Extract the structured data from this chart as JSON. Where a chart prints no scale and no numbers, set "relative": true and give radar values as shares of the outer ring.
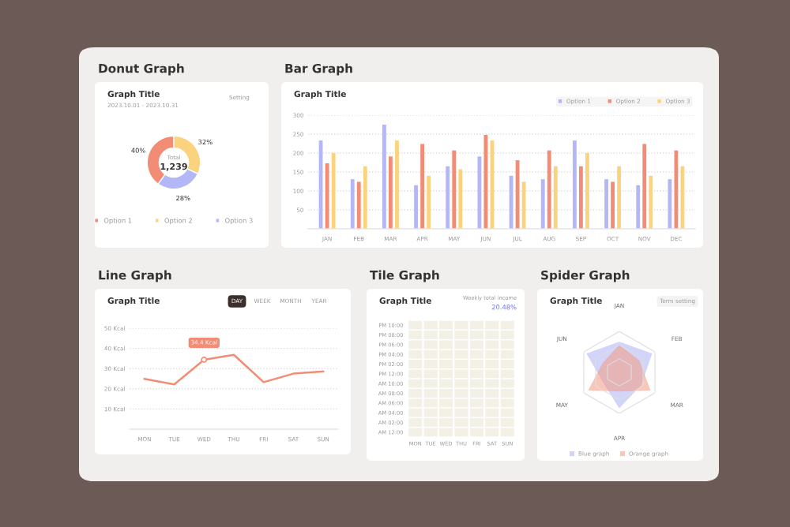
{
  "chart_data": [
    {
      "type": "donut",
      "title": "Donut Graph",
      "subtitle": "Graph Title",
      "categories": [
        "Option 1",
        "Option 2",
        "Option 3"
      ],
      "values": [
        40,
        32,
        28
      ],
      "value_labels": [
        "40%",
        "32%",
        "28%"
      ],
      "colors": [
        "#f28c74",
        "#fbd27e",
        "#b4b7f6"
      ],
      "legend": "bottom",
      "annotations": [
        "2023.10.01 - 2023.10.31",
        "Setting",
        "Total",
        "1,239"
      ]
    },
    {
      "type": "bar",
      "title": "Bar Graph",
      "subtitle": "Graph Title",
      "categories": [
        "JAN",
        "FEB",
        "MAR",
        "APR",
        "MAY",
        "JUN",
        "JUL",
        "AUG",
        "SEP",
        "OCT",
        "NOV",
        "DEC"
      ],
      "series": [
        {
          "name": "Option 1",
          "color": "#b4b7f6",
          "values": [
            233,
            131,
            275,
            115,
            165,
            191,
            140,
            131,
            233,
            131,
            115,
            131
          ]
        },
        {
          "name": "Option 2",
          "color": "#f28c74",
          "values": [
            173,
            124,
            191,
            224,
            207,
            248,
            181,
            207,
            165,
            124,
            224,
            207
          ]
        },
        {
          "name": "Option 3",
          "color": "#fbd27e",
          "values": [
            200,
            165,
            233,
            140,
            157,
            233,
            124,
            165,
            200,
            165,
            140,
            165
          ]
        }
      ],
      "ylim": [
        0,
        300
      ],
      "yticks": [
        50,
        100,
        150,
        200,
        250,
        300
      ],
      "grid": "y",
      "legend": "top right"
    },
    {
      "type": "line",
      "title": "Line Graph",
      "subtitle": "Graph Title",
      "categories": [
        "MON",
        "TUE",
        "WED",
        "THU",
        "FRI",
        "SAT",
        "SUN"
      ],
      "series": [
        {
          "color": "#f28c74",
          "values": [
            24.9,
            22.2,
            34.4,
            36.8,
            23.3,
            27.5,
            28.6
          ]
        }
      ],
      "ylim": [
        0,
        50
      ],
      "yticks": [
        {
          "value": 10,
          "label": "10 Kcal"
        },
        {
          "value": 20,
          "label": "20 Kcal"
        },
        {
          "value": 30,
          "label": "30 Kcal"
        },
        {
          "value": 40,
          "label": "40 Kcal"
        },
        {
          "value": 50,
          "label": "50 Kcal"
        }
      ],
      "grid": "y",
      "annotations": [
        "DAY",
        "WEEK",
        "MONTH",
        "YEAR",
        {
          "text": "34.4 Kcal",
          "x": "WED",
          "y": 34.4
        }
      ]
    },
    {
      "type": "other",
      "title": "Tile Graph",
      "subtitle": "Graph Title",
      "categories": [
        "MON",
        "TUE",
        "WED",
        "THU",
        "FRI",
        "SAT",
        "SUN"
      ],
      "y_categories": [
        "PM 10:00",
        "PM 08:00",
        "PM 06:00",
        "PM 04:00",
        "PM 02:00",
        "PM 12:00",
        "AM 10:00",
        "AM 08:00",
        "AM 06:00",
        "AM 04:00",
        "AM 02:00",
        "AM 12:00"
      ],
      "annotations": [
        "Weekly total income",
        "20.48%"
      ]
    },
    {
      "type": "radar",
      "title": "Spider Graph",
      "subtitle": "Graph Title",
      "categories": [
        "JAN",
        "FEB",
        "MAR",
        "APR",
        "MAY",
        "JUN"
      ],
      "relative": true,
      "series": [
        {
          "name": "Blue graph",
          "color": "#aeb1f5",
          "values": [
            0.73,
            0.9,
            0.6,
            0.85,
            0.45,
            0.9
          ]
        },
        {
          "name": "Orange graph",
          "color": "#f29a82",
          "values": [
            0.65,
            0.55,
            0.85,
            0.45,
            0.85,
            0.45
          ]
        }
      ],
      "legend": "bottom",
      "annotations": [
        "Term setting"
      ]
    }
  ]
}
